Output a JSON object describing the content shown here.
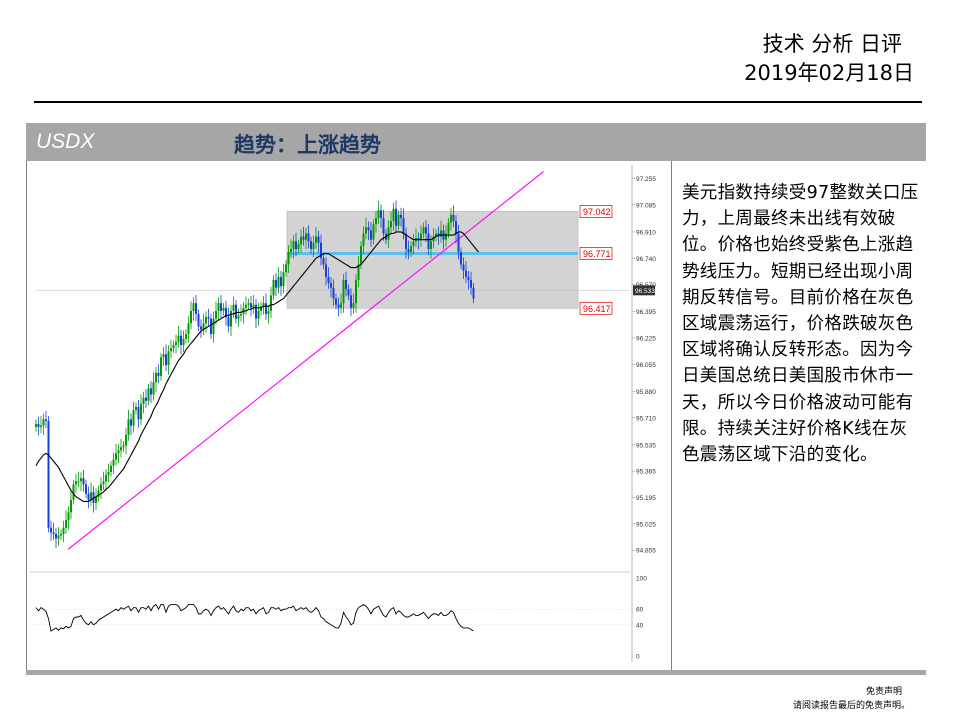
{
  "header": {
    "title": "技术 分析 日评",
    "date": "2019年02月18日"
  },
  "band": {
    "ticker": "USDX",
    "trend": "趋势：上涨趋势"
  },
  "commentary": "美元指数持续受97整数关口压力，上周最终未出线有效破位。价格也始终受紫色上涨趋势线压力。短期已经出现小周期反转信号。目前价格在灰色区域震荡运行，价格跌破灰色区域将确认反转形态。因为今日美国总统日美国股市休市一天，所以今日价格波动可能有限。持续关注好价格K线在灰色震荡区域下沿的变化。",
  "disclaimer": {
    "line1": "免责声明",
    "line2": "请阅读报告最后的免责声明。"
  },
  "colors": {
    "up": "#009900",
    "down": "#1a3fd6",
    "ma": "#000000",
    "trendline": "#ff00ff",
    "box": "#d3d3d3",
    "mid_level": "#5bc0f0",
    "label": "#e00000"
  },
  "chart_data": [
    {
      "type": "candlestick",
      "ylim": [
        94.74,
        97.31
      ],
      "y_ticks": [
        "97.255",
        "97.085",
        "96.910",
        "96.740",
        "96.570",
        "96.395",
        "96.225",
        "96.055",
        "95.880",
        "95.710",
        "95.535",
        "95.365",
        "95.195",
        "95.025",
        "94.855"
      ],
      "last_price": "96.533",
      "levels": [
        {
          "label": "97.042",
          "value": 97.042
        },
        {
          "label": "96.771",
          "value": 96.771
        },
        {
          "label": "96.417",
          "value": 96.417
        }
      ],
      "range_box": {
        "top": 97.042,
        "bottom": 96.417,
        "start_index": 102
      },
      "trendline": [
        {
          "index": 4,
          "value": 94.86
        },
        {
          "index": 151,
          "value": 97.3
        }
      ],
      "series_close": [
        95.67,
        95.65,
        95.66,
        95.7,
        95.69,
        95.0,
        94.97,
        94.96,
        94.93,
        94.95,
        94.96,
        95.0,
        95.05,
        95.1,
        95.18,
        95.28,
        95.3,
        95.3,
        95.32,
        95.28,
        95.22,
        95.18,
        95.23,
        95.16,
        95.2,
        95.24,
        95.28,
        95.3,
        95.34,
        95.36,
        95.4,
        95.44,
        95.48,
        95.5,
        95.52,
        95.53,
        95.6,
        95.7,
        95.66,
        95.76,
        95.78,
        95.7,
        95.8,
        95.84,
        95.82,
        95.9,
        95.86,
        95.94,
        96.0,
        95.98,
        96.1,
        96.12,
        96.05,
        96.14,
        96.16,
        96.18,
        96.2,
        96.24,
        96.18,
        96.22,
        96.25,
        96.32,
        96.4,
        96.45,
        96.38,
        96.3,
        96.28,
        96.32,
        96.36,
        96.35,
        96.25,
        96.35,
        96.4,
        96.45,
        96.4,
        96.42,
        96.36,
        96.3,
        96.4,
        96.44,
        96.35,
        96.37,
        96.38,
        96.42,
        96.44,
        96.45,
        96.42,
        96.44,
        96.35,
        96.4,
        96.43,
        96.45,
        96.38,
        96.4,
        96.5,
        96.6,
        96.55,
        96.62,
        96.56,
        96.65,
        96.7,
        96.78,
        96.8,
        96.85,
        96.8,
        96.83,
        96.88,
        96.86,
        96.9,
        96.85,
        96.8,
        96.84,
        96.88,
        96.84,
        96.74,
        96.7,
        96.62,
        96.58,
        96.55,
        96.48,
        96.44,
        96.42,
        96.45,
        96.6,
        96.54,
        96.5,
        96.42,
        96.45,
        96.6,
        96.7,
        96.82,
        96.9,
        96.94,
        96.92,
        96.86,
        96.96,
        97.0,
        97.05,
        97.0,
        96.9,
        96.86,
        96.94,
        96.98,
        97.06,
        96.95,
        97.02,
        97.0,
        96.9,
        96.8,
        96.78,
        96.82,
        96.85,
        96.87,
        96.86,
        96.9,
        96.94,
        96.9,
        96.8,
        96.85,
        96.88,
        96.9,
        96.88,
        96.92,
        96.86,
        96.9,
        96.97,
        97.02,
        96.98,
        96.9,
        96.78,
        96.7,
        96.66,
        96.62,
        96.6,
        96.55,
        96.48
      ],
      "series_ma": [
        95.4,
        95.43,
        95.45,
        95.47,
        95.48,
        95.47,
        95.45,
        95.43,
        95.41,
        95.39,
        95.36,
        95.33,
        95.3,
        95.27,
        95.24,
        95.22,
        95.2,
        95.19,
        95.18,
        95.17,
        95.17,
        95.17,
        95.18,
        95.19,
        95.2,
        95.21,
        95.22,
        95.23,
        95.25,
        95.26,
        95.28,
        95.3,
        95.32,
        95.34,
        95.36,
        95.38,
        95.41,
        95.44,
        95.47,
        95.5,
        95.53,
        95.56,
        95.6,
        95.63,
        95.66,
        95.69,
        95.72,
        95.76,
        95.79,
        95.82,
        95.86,
        95.89,
        95.93,
        95.96,
        95.99,
        96.02,
        96.05,
        96.08,
        96.1,
        96.12,
        96.15,
        96.17,
        96.19,
        96.21,
        96.23,
        96.25,
        96.27,
        96.28,
        96.29,
        96.3,
        96.31,
        96.32,
        96.33,
        96.34,
        96.35,
        96.36,
        96.37,
        96.37,
        96.38,
        96.38,
        96.39,
        96.39,
        96.39,
        96.4,
        96.4,
        96.41,
        96.41,
        96.42,
        96.42,
        96.42,
        96.42,
        96.43,
        96.43,
        96.43,
        96.44,
        96.44,
        96.45,
        96.46,
        96.47,
        96.48,
        96.5,
        96.52,
        96.54,
        96.56,
        96.58,
        96.6,
        96.62,
        96.64,
        96.66,
        96.68,
        96.7,
        96.72,
        96.74,
        96.75,
        96.76,
        96.77,
        96.77,
        96.77,
        96.76,
        96.75,
        96.74,
        96.73,
        96.72,
        96.71,
        96.7,
        96.69,
        96.68,
        96.68,
        96.68,
        96.69,
        96.7,
        96.72,
        96.74,
        96.76,
        96.78,
        96.8,
        96.82,
        96.84,
        96.86,
        96.87,
        96.88,
        96.89,
        96.9,
        96.9,
        96.91,
        96.91,
        96.91,
        96.9,
        96.89,
        96.88,
        96.87,
        96.86,
        96.86,
        96.86,
        96.86,
        96.86,
        96.86,
        96.86,
        96.86,
        96.87,
        96.88,
        96.89,
        96.89,
        96.89,
        96.89,
        96.89,
        96.89,
        96.89,
        96.9,
        96.91,
        96.91,
        96.9,
        96.88,
        96.86,
        96.84,
        96.82,
        96.8,
        96.78
      ]
    },
    {
      "type": "line",
      "ylim": [
        0,
        100
      ],
      "y_ticks": [
        "100",
        "60",
        "40",
        "0"
      ],
      "levels": [
        60,
        40
      ],
      "values": [
        62,
        58,
        62,
        60,
        57,
        48,
        32,
        34,
        36,
        33,
        36,
        35,
        38,
        36,
        38,
        48,
        50,
        50,
        52,
        46,
        42,
        40,
        44,
        40,
        42,
        46,
        48,
        50,
        52,
        54,
        56,
        58,
        60,
        58,
        62,
        60,
        62,
        64,
        58,
        62,
        62,
        56,
        62,
        62,
        60,
        64,
        58,
        64,
        66,
        60,
        66,
        66,
        56,
        64,
        66,
        66,
        66,
        64,
        58,
        60,
        62,
        66,
        66,
        66,
        62,
        54,
        54,
        58,
        60,
        58,
        52,
        58,
        62,
        64,
        60,
        62,
        58,
        54,
        60,
        64,
        58,
        56,
        60,
        58,
        62,
        62,
        58,
        60,
        54,
        58,
        60,
        62,
        54,
        56,
        62,
        62,
        60,
        62,
        58,
        60,
        60,
        62,
        62,
        64,
        58,
        60,
        62,
        60,
        62,
        58,
        56,
        58,
        62,
        58,
        50,
        48,
        44,
        42,
        40,
        38,
        36,
        36,
        42,
        56,
        50,
        46,
        40,
        42,
        56,
        62,
        64,
        66,
        64,
        60,
        54,
        60,
        62,
        64,
        58,
        52,
        50,
        56,
        60,
        62,
        54,
        58,
        56,
        52,
        50,
        50,
        52,
        54,
        52,
        52,
        54,
        56,
        52,
        48,
        52,
        54,
        54,
        52,
        56,
        52,
        52,
        54,
        58,
        56,
        48,
        42,
        38,
        36,
        36,
        36,
        34,
        32
      ]
    }
  ]
}
